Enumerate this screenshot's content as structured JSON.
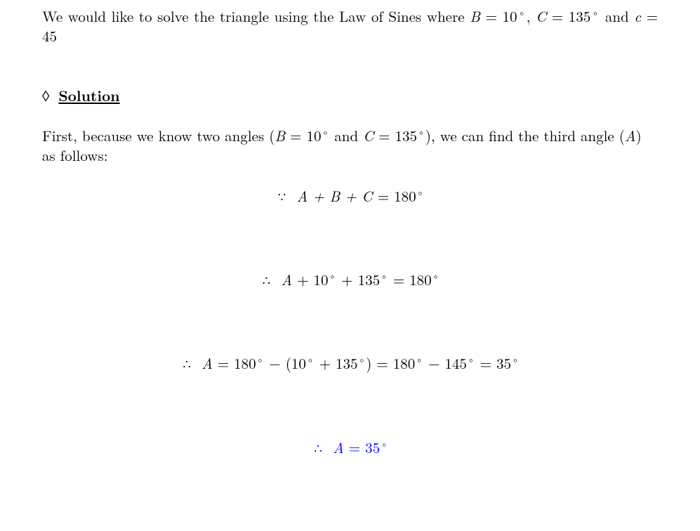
{
  "text_color": "#000000",
  "accent_color": "#0000ff",
  "background_color": "#ffffff",
  "font_size_pt": 16,
  "problem": {
    "pre": "We would like to solve the triangle using the Law of Sines where ",
    "B_var": "B",
    "eq1": " = 10",
    "deg": "◦",
    "comma": ", ",
    "C_var": "C",
    "eq2": " = 135",
    "and": " and ",
    "c_var": "c",
    "eq3": " = 45"
  },
  "solution": {
    "diamond": "◊",
    "label": "Solution",
    "intro_pre": "First, because we know two angles (",
    "B_var": "B",
    "intro_eq1": " = 10",
    "deg": "◦",
    "and": " and ",
    "C_var": "C",
    "intro_eq2": " = 135",
    "intro_mid": "), we can find the third angle (",
    "A_var": "A",
    "intro_post": ") as follows:"
  },
  "equations": {
    "because": "∵",
    "therefore": "∴",
    "line1_left": "A + B + C ",
    "line1_right": " = 180",
    "line2_left": "A",
    "line2_mid1": " + 10",
    "line2_mid2": " + 135",
    "line2_right": " = 180",
    "line3_left": "A",
    "line3_a": " = 180",
    "line3_b": " − (10",
    "line3_c": " + 135",
    "line3_d": ") = 180",
    "line3_e": " − 145",
    "line3_f": " = 35",
    "line4_left": "A",
    "line4_right": " = 35",
    "deg": "◦"
  }
}
